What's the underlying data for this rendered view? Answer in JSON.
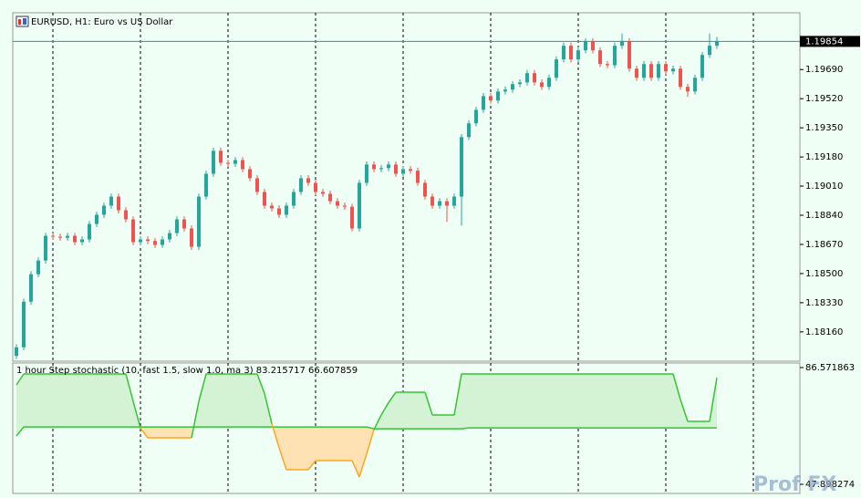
{
  "chart_data": [
    {
      "type": "candlestick",
      "title": "EURUSD, H1:  Euro vs US Dollar",
      "up_color": "#26a69a",
      "down_color": "#ef5350",
      "ylim": [
        1.17989,
        1.20021
      ],
      "yticks": [
        {
          "value": 1.1969,
          "label": "1.19690"
        },
        {
          "value": 1.1952,
          "label": "1.19520"
        },
        {
          "value": 1.1935,
          "label": "1.19350"
        },
        {
          "value": 1.1918,
          "label": "1.19180"
        },
        {
          "value": 1.1901,
          "label": "1.19010"
        },
        {
          "value": 1.1884,
          "label": "1.18840"
        },
        {
          "value": 1.1867,
          "label": "1.18670"
        },
        {
          "value": 1.185,
          "label": "1.18500"
        },
        {
          "value": 1.1833,
          "label": "1.18330"
        },
        {
          "value": 1.1816,
          "label": "1.18160"
        }
      ],
      "last_price": 1.19854,
      "last_price_color": "#4682b4",
      "ohlc": [
        [
          1.1802,
          1.18088,
          1.18002,
          1.1807
        ],
        [
          1.1807,
          1.18354,
          1.18052,
          1.18336
        ],
        [
          1.18336,
          1.18514,
          1.18318,
          1.18496
        ],
        [
          1.18496,
          1.18594,
          1.18478,
          1.18576
        ],
        [
          1.18576,
          1.18738,
          1.18558,
          1.1872
        ],
        [
          1.1872,
          1.18738,
          1.18697,
          1.18715
        ],
        [
          1.18715,
          1.18733,
          1.18691,
          1.18709
        ],
        [
          1.18709,
          1.18738,
          1.18691,
          1.1872
        ],
        [
          1.1872,
          1.18738,
          1.18665,
          1.18683
        ],
        [
          1.18683,
          1.18717,
          1.18665,
          1.18699
        ],
        [
          1.18699,
          1.18807,
          1.18681,
          1.18789
        ],
        [
          1.18789,
          1.18861,
          1.18771,
          1.18843
        ],
        [
          1.18843,
          1.18914,
          1.18825,
          1.18896
        ],
        [
          1.18896,
          1.18967,
          1.18878,
          1.18949
        ],
        [
          1.18949,
          1.18967,
          1.18851,
          1.18869
        ],
        [
          1.18869,
          1.18887,
          1.18798,
          1.18816
        ],
        [
          1.18816,
          1.18834,
          1.18665,
          1.18683
        ],
        [
          1.18683,
          1.18717,
          1.18665,
          1.18699
        ],
        [
          1.18699,
          1.18717,
          1.18672,
          1.1869
        ],
        [
          1.1869,
          1.18708,
          1.18649,
          1.18667
        ],
        [
          1.18667,
          1.18717,
          1.18649,
          1.18699
        ],
        [
          1.18699,
          1.18754,
          1.18681,
          1.18736
        ],
        [
          1.18736,
          1.18834,
          1.18718,
          1.18816
        ],
        [
          1.18816,
          1.18834,
          1.18745,
          1.18763
        ],
        [
          1.18763,
          1.18781,
          1.18638,
          1.18656
        ],
        [
          1.18656,
          1.18967,
          1.18638,
          1.18949
        ],
        [
          1.18949,
          1.191,
          1.18931,
          1.19082
        ],
        [
          1.19082,
          1.19234,
          1.19064,
          1.19216
        ],
        [
          1.19216,
          1.19234,
          1.19128,
          1.19146
        ],
        [
          1.19146,
          1.19164,
          1.19122,
          1.1914
        ],
        [
          1.1914,
          1.1918,
          1.19122,
          1.19162
        ],
        [
          1.19162,
          1.1918,
          1.19091,
          1.19109
        ],
        [
          1.19109,
          1.19127,
          1.19038,
          1.19056
        ],
        [
          1.19056,
          1.19074,
          1.18958,
          1.18976
        ],
        [
          1.18976,
          1.18994,
          1.18878,
          1.18896
        ],
        [
          1.18896,
          1.18914,
          1.18862,
          1.1888
        ],
        [
          1.1888,
          1.18898,
          1.18825,
          1.18843
        ],
        [
          1.18843,
          1.18914,
          1.18825,
          1.18896
        ],
        [
          1.18896,
          1.18994,
          1.18878,
          1.18976
        ],
        [
          1.18976,
          1.19074,
          1.18958,
          1.19056
        ],
        [
          1.19056,
          1.19074,
          1.19011,
          1.19029
        ],
        [
          1.19029,
          1.19047,
          1.18958,
          1.18976
        ],
        [
          1.18976,
          1.18994,
          1.18947,
          1.18965
        ],
        [
          1.18965,
          1.18983,
          1.18904,
          1.18922
        ],
        [
          1.18922,
          1.1894,
          1.18878,
          1.18896
        ],
        [
          1.18896,
          1.18914,
          1.18872,
          1.1889
        ],
        [
          1.1889,
          1.18908,
          1.18745,
          1.18763
        ],
        [
          1.18763,
          1.19047,
          1.18745,
          1.19029
        ],
        [
          1.19029,
          1.19154,
          1.19011,
          1.19136
        ],
        [
          1.19136,
          1.19154,
          1.19091,
          1.19109
        ],
        [
          1.19109,
          1.19133,
          1.19091,
          1.19115
        ],
        [
          1.19115,
          1.19154,
          1.19097,
          1.19136
        ],
        [
          1.19136,
          1.19154,
          1.19064,
          1.19082
        ],
        [
          1.19082,
          1.19127,
          1.19064,
          1.19109
        ],
        [
          1.19109,
          1.19127,
          1.19082,
          1.191
        ],
        [
          1.191,
          1.19118,
          1.19011,
          1.19029
        ],
        [
          1.19029,
          1.19047,
          1.18931,
          1.18949
        ],
        [
          1.18949,
          1.18967,
          1.18878,
          1.18896
        ],
        [
          1.18896,
          1.1894,
          1.18878,
          1.18922
        ],
        [
          1.18922,
          1.1894,
          1.188,
          1.18896
        ],
        [
          1.18896,
          1.18967,
          1.18878,
          1.18949
        ],
        [
          1.18949,
          1.19314,
          1.1878,
          1.19296
        ],
        [
          1.19296,
          1.19394,
          1.19278,
          1.19376
        ],
        [
          1.19376,
          1.19473,
          1.19358,
          1.19455
        ],
        [
          1.19455,
          1.19553,
          1.19437,
          1.19535
        ],
        [
          1.19535,
          1.19553,
          1.19491,
          1.19509
        ],
        [
          1.19509,
          1.1958,
          1.19491,
          1.19562
        ],
        [
          1.19562,
          1.19591,
          1.19544,
          1.19573
        ],
        [
          1.19573,
          1.19623,
          1.19555,
          1.19605
        ],
        [
          1.19605,
          1.19633,
          1.19587,
          1.19615
        ],
        [
          1.19615,
          1.19687,
          1.19597,
          1.19669
        ],
        [
          1.19669,
          1.19687,
          1.19597,
          1.19615
        ],
        [
          1.19615,
          1.19633,
          1.19571,
          1.19589
        ],
        [
          1.19589,
          1.1966,
          1.19571,
          1.19642
        ],
        [
          1.19642,
          1.19767,
          1.19624,
          1.19749
        ],
        [
          1.19749,
          1.19847,
          1.19731,
          1.19829
        ],
        [
          1.19829,
          1.19847,
          1.19731,
          1.19749
        ],
        [
          1.19749,
          1.1982,
          1.19731,
          1.19802
        ],
        [
          1.19802,
          1.19873,
          1.19784,
          1.19855
        ],
        [
          1.19855,
          1.19873,
          1.19784,
          1.19802
        ],
        [
          1.19802,
          1.1982,
          1.19704,
          1.19722
        ],
        [
          1.19722,
          1.1974,
          1.19697,
          1.19715
        ],
        [
          1.19715,
          1.19847,
          1.19697,
          1.19829
        ],
        [
          1.19829,
          1.199,
          1.19811,
          1.19855
        ],
        [
          1.19855,
          1.19873,
          1.19677,
          1.19695
        ],
        [
          1.19695,
          1.19713,
          1.19624,
          1.19642
        ],
        [
          1.19642,
          1.1974,
          1.19624,
          1.19722
        ],
        [
          1.19722,
          1.1974,
          1.19624,
          1.19642
        ],
        [
          1.19642,
          1.1974,
          1.19624,
          1.19722
        ],
        [
          1.19722,
          1.1974,
          1.19661,
          1.19679
        ],
        [
          1.19679,
          1.19713,
          1.19661,
          1.19695
        ],
        [
          1.19695,
          1.19713,
          1.19571,
          1.19589
        ],
        [
          1.19589,
          1.19607,
          1.1953,
          1.19562
        ],
        [
          1.19562,
          1.1966,
          1.19544,
          1.19642
        ],
        [
          1.19642,
          1.19793,
          1.19624,
          1.19775
        ],
        [
          1.19775,
          1.199,
          1.19757,
          1.19829
        ],
        [
          1.19829,
          1.1988,
          1.19811,
          1.19854
        ]
      ]
    },
    {
      "type": "line",
      "title": "1 hour Step stochastic (10, fast 1.5, slow 1.0, ma 3) 83.215717 66.607859",
      "ylim": [
        47.898274,
        86.571863
      ],
      "yticks": [
        86.571863,
        47.898274
      ],
      "fill_above": "#d4f2d4",
      "fill_below": "#ffe2b4",
      "series": [
        {
          "color": "#33c633",
          "below_color": "#ffa51f",
          "values": [
            80.83,
            84.46,
            84.46,
            84.46,
            84.46,
            84.46,
            84.46,
            84.46,
            84.46,
            84.46,
            84.46,
            84.46,
            84.46,
            84.46,
            84.46,
            84.46,
            75.4,
            66.5,
            63.31,
            63.31,
            63.31,
            63.31,
            63.31,
            63.31,
            63.31,
            75.4,
            84.46,
            84.46,
            84.46,
            84.46,
            84.46,
            84.46,
            84.46,
            84.46,
            78.0,
            68.0,
            60.0,
            52.73,
            52.73,
            52.73,
            52.73,
            55.76,
            55.76,
            55.76,
            55.76,
            55.76,
            55.76,
            50.31,
            58.0,
            66.0,
            70.86,
            75.0,
            78.41,
            78.41,
            78.41,
            78.41,
            78.41,
            70.86,
            70.86,
            70.86,
            70.86,
            84.46,
            84.46,
            84.46,
            84.46,
            84.46,
            84.46,
            84.46,
            84.46,
            84.46,
            84.46,
            84.46,
            84.46,
            84.46,
            84.46,
            84.46,
            84.46,
            84.46,
            84.46,
            84.46,
            84.46,
            84.46,
            84.46,
            84.46,
            84.46,
            84.46,
            84.46,
            84.46,
            84.46,
            84.46,
            84.46,
            76.0,
            68.75,
            68.75,
            68.75,
            68.75,
            83.215717
          ]
        },
        {
          "color": "#33c633",
          "values": [
            63.9,
            66.9,
            66.9,
            66.9,
            66.9,
            66.9,
            66.9,
            66.9,
            66.9,
            66.9,
            66.9,
            66.9,
            66.9,
            66.9,
            66.9,
            66.9,
            66.9,
            66.9,
            66.9,
            66.9,
            66.9,
            66.9,
            66.9,
            66.9,
            66.9,
            66.9,
            66.9,
            66.9,
            66.9,
            66.9,
            66.9,
            66.9,
            66.9,
            66.9,
            66.9,
            66.9,
            66.9,
            66.9,
            66.9,
            66.9,
            66.9,
            66.9,
            66.9,
            66.9,
            66.9,
            66.9,
            66.9,
            66.9,
            66.9,
            66.3,
            66.3,
            66.3,
            66.3,
            66.3,
            66.3,
            66.3,
            66.3,
            66.3,
            66.3,
            66.3,
            66.3,
            66.3,
            66.6,
            66.6,
            66.6,
            66.6,
            66.6,
            66.6,
            66.6,
            66.6,
            66.6,
            66.6,
            66.6,
            66.6,
            66.6,
            66.6,
            66.6,
            66.6,
            66.6,
            66.6,
            66.6,
            66.6,
            66.6,
            66.6,
            66.6,
            66.6,
            66.6,
            66.6,
            66.6,
            66.6,
            66.6,
            66.6,
            66.6,
            66.6,
            66.6,
            66.6,
            66.607859
          ]
        }
      ]
    }
  ],
  "watermark": "Prof FX"
}
